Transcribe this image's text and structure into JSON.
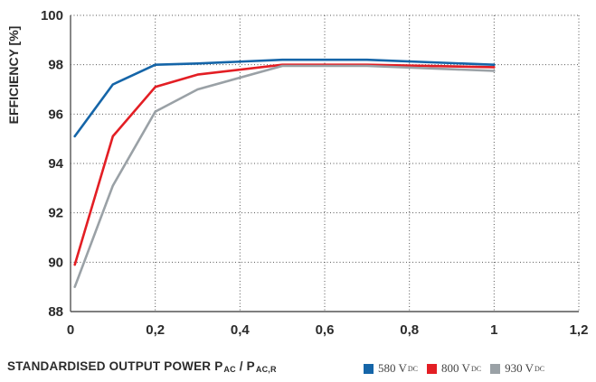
{
  "chart_data": {
    "type": "line",
    "ylabel": "EFFICIENCY [%]",
    "xlabel": {
      "text": "STANDARDISED OUTPUT POWER P",
      "sub1": "AC",
      "mid": " / P",
      "sub2": "AC,R"
    },
    "xlim": [
      0,
      1.2
    ],
    "ylim": [
      88,
      100
    ],
    "xticks": [
      0,
      0.2,
      0.4,
      0.6,
      0.8,
      1,
      1.2
    ],
    "xtick_labels": [
      "0",
      "0,2",
      "0,4",
      "0,6",
      "0,8",
      "1",
      "1,2"
    ],
    "yticks": [
      88,
      90,
      92,
      94,
      96,
      98,
      100
    ],
    "ytick_labels": [
      "88",
      "90",
      "92",
      "94",
      "96",
      "98",
      "100"
    ],
    "grid": true,
    "legend_position": "bottom-right",
    "series": [
      {
        "name": "580 V",
        "name_sub": "DC",
        "color": "#1565a8",
        "x": [
          0.01,
          0.1,
          0.2,
          0.3,
          0.5,
          0.7,
          1.0
        ],
        "y": [
          95.1,
          97.2,
          98.0,
          98.05,
          98.2,
          98.2,
          98.0
        ]
      },
      {
        "name": "800 V",
        "name_sub": "DC",
        "color": "#e31e24",
        "x": [
          0.01,
          0.1,
          0.2,
          0.3,
          0.5,
          0.7,
          1.0
        ],
        "y": [
          89.9,
          95.1,
          97.1,
          97.6,
          98.0,
          98.0,
          97.9
        ]
      },
      {
        "name": "930 V",
        "name_sub": "DC",
        "color": "#9aa1a6",
        "x": [
          0.01,
          0.1,
          0.2,
          0.3,
          0.5,
          0.7,
          1.0
        ],
        "y": [
          89.0,
          93.1,
          96.1,
          97.0,
          97.95,
          97.95,
          97.75
        ]
      }
    ]
  }
}
